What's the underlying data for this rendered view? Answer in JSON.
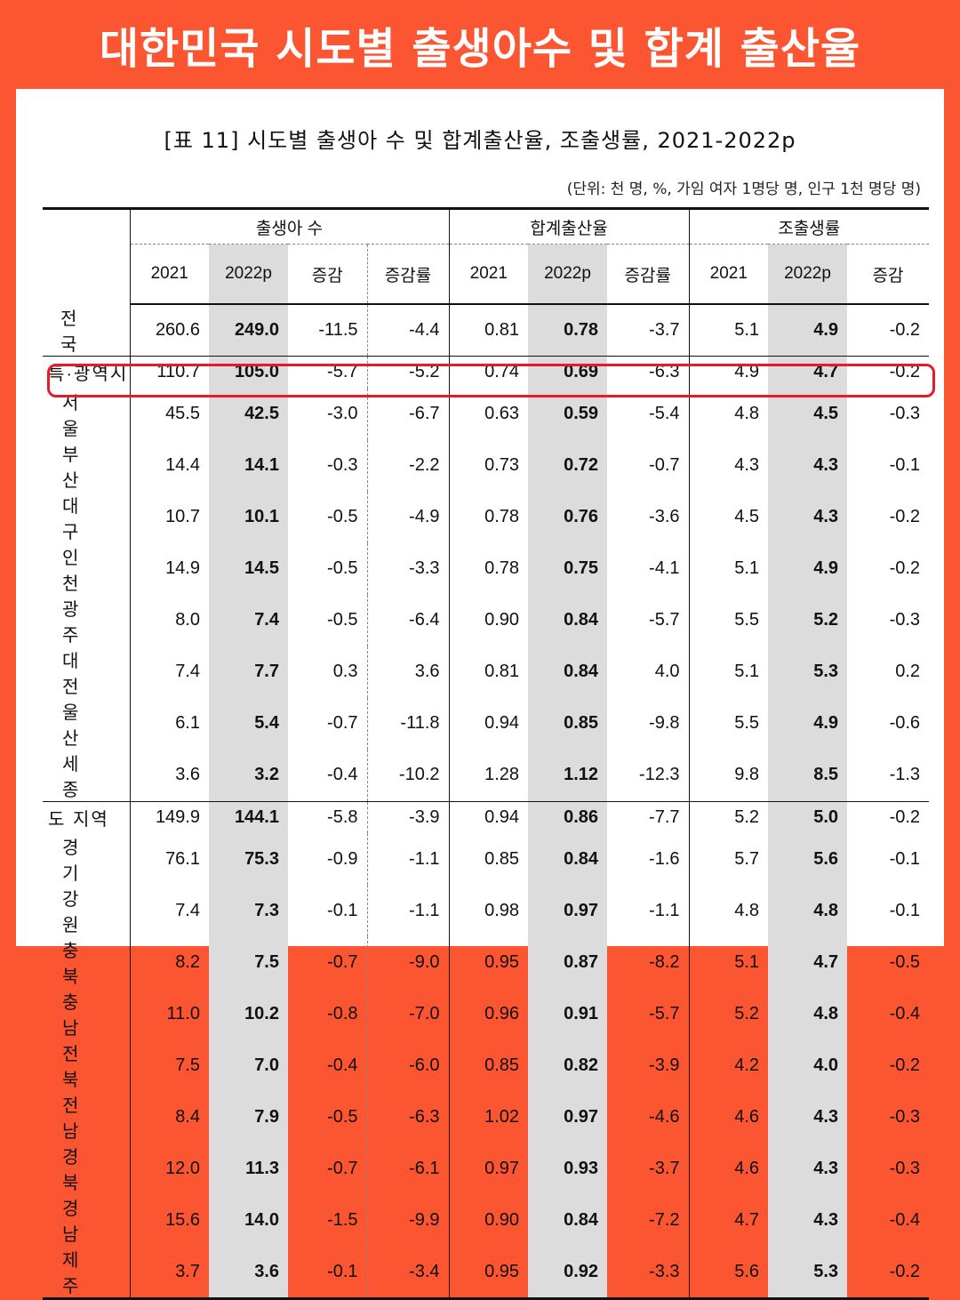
{
  "banner": {
    "title": "대한민국 시도별 출생아수 및 합계 출산율"
  },
  "table": {
    "title": "[표 11] 시도별 출생아 수 및 합계출산율, 조출생률, 2021-2022p",
    "unit": "(단위: 천 명, %, 가임 여자 1명당 명, 인구 1천 명당 명)",
    "groups": [
      "출생아 수",
      "합계출산율",
      "조출생률"
    ],
    "subheaders": [
      "2021",
      "2022p",
      "증감",
      "증감률",
      "2021",
      "2022p",
      "증감률",
      "2021",
      "2022p",
      "증감"
    ],
    "highlight_row": "서 울",
    "rows": [
      {
        "region": "전 국",
        "values": [
          "260.6",
          "249.0",
          "-11.5",
          "-4.4",
          "0.81",
          "0.78",
          "-3.7",
          "5.1",
          "4.9",
          "-0.2"
        ]
      },
      {
        "region": "특·광역시",
        "values": [
          "110.7",
          "105.0",
          "-5.7",
          "-5.2",
          "0.74",
          "0.69",
          "-6.3",
          "4.9",
          "4.7",
          "-0.2"
        ]
      },
      {
        "region": "서 울",
        "values": [
          "45.5",
          "42.5",
          "-3.0",
          "-6.7",
          "0.63",
          "0.59",
          "-5.4",
          "4.8",
          "4.5",
          "-0.3"
        ]
      },
      {
        "region": "부 산",
        "values": [
          "14.4",
          "14.1",
          "-0.3",
          "-2.2",
          "0.73",
          "0.72",
          "-0.7",
          "4.3",
          "4.3",
          "-0.1"
        ]
      },
      {
        "region": "대 구",
        "values": [
          "10.7",
          "10.1",
          "-0.5",
          "-4.9",
          "0.78",
          "0.76",
          "-3.6",
          "4.5",
          "4.3",
          "-0.2"
        ]
      },
      {
        "region": "인 천",
        "values": [
          "14.9",
          "14.5",
          "-0.5",
          "-3.3",
          "0.78",
          "0.75",
          "-4.1",
          "5.1",
          "4.9",
          "-0.2"
        ]
      },
      {
        "region": "광 주",
        "values": [
          "8.0",
          "7.4",
          "-0.5",
          "-6.4",
          "0.90",
          "0.84",
          "-5.7",
          "5.5",
          "5.2",
          "-0.3"
        ]
      },
      {
        "region": "대 전",
        "values": [
          "7.4",
          "7.7",
          "0.3",
          "3.6",
          "0.81",
          "0.84",
          "4.0",
          "5.1",
          "5.3",
          "0.2"
        ]
      },
      {
        "region": "울 산",
        "values": [
          "6.1",
          "5.4",
          "-0.7",
          "-11.8",
          "0.94",
          "0.85",
          "-9.8",
          "5.5",
          "4.9",
          "-0.6"
        ]
      },
      {
        "region": "세 종",
        "values": [
          "3.6",
          "3.2",
          "-0.4",
          "-10.2",
          "1.28",
          "1.12",
          "-12.3",
          "9.8",
          "8.5",
          "-1.3"
        ]
      },
      {
        "region": "도 지역",
        "values": [
          "149.9",
          "144.1",
          "-5.8",
          "-3.9",
          "0.94",
          "0.86",
          "-7.7",
          "5.2",
          "5.0",
          "-0.2"
        ]
      },
      {
        "region": "경 기",
        "values": [
          "76.1",
          "75.3",
          "-0.9",
          "-1.1",
          "0.85",
          "0.84",
          "-1.6",
          "5.7",
          "5.6",
          "-0.1"
        ]
      },
      {
        "region": "강 원",
        "values": [
          "7.4",
          "7.3",
          "-0.1",
          "-1.1",
          "0.98",
          "0.97",
          "-1.1",
          "4.8",
          "4.8",
          "-0.1"
        ]
      },
      {
        "region": "충 북",
        "values": [
          "8.2",
          "7.5",
          "-0.7",
          "-9.0",
          "0.95",
          "0.87",
          "-8.2",
          "5.1",
          "4.7",
          "-0.5"
        ]
      },
      {
        "region": "충 남",
        "values": [
          "11.0",
          "10.2",
          "-0.8",
          "-7.0",
          "0.96",
          "0.91",
          "-5.7",
          "5.2",
          "4.8",
          "-0.4"
        ]
      },
      {
        "region": "전 북",
        "values": [
          "7.5",
          "7.0",
          "-0.4",
          "-6.0",
          "0.85",
          "0.82",
          "-3.9",
          "4.2",
          "4.0",
          "-0.2"
        ]
      },
      {
        "region": "전 남",
        "values": [
          "8.4",
          "7.9",
          "-0.5",
          "-6.3",
          "1.02",
          "0.97",
          "-4.6",
          "4.6",
          "4.3",
          "-0.3"
        ]
      },
      {
        "region": "경 북",
        "values": [
          "12.0",
          "11.3",
          "-0.7",
          "-6.1",
          "0.97",
          "0.93",
          "-3.7",
          "4.6",
          "4.3",
          "-0.3"
        ]
      },
      {
        "region": "경 남",
        "values": [
          "15.6",
          "14.0",
          "-1.5",
          "-9.9",
          "0.90",
          "0.84",
          "-7.2",
          "4.7",
          "4.3",
          "-0.4"
        ]
      },
      {
        "region": "제 주",
        "values": [
          "3.7",
          "3.6",
          "-0.1",
          "-3.4",
          "0.95",
          "0.92",
          "-3.3",
          "5.6",
          "5.3",
          "-0.2"
        ]
      }
    ]
  },
  "colors": {
    "banner": "#fc5532",
    "highlight": "#e61a2b",
    "shade": "#dcdcdc"
  }
}
